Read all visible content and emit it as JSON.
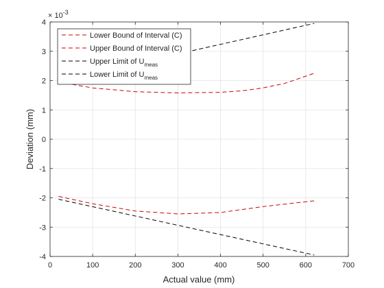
{
  "chart_data": {
    "type": "line",
    "xlabel": "Actual value (mm)",
    "ylabel": "Deviation (mm)",
    "xlim": [
      0,
      700
    ],
    "ylim": [
      -4,
      4
    ],
    "x_ticks": [
      0,
      100,
      200,
      300,
      400,
      500,
      600,
      700
    ],
    "y_ticks": [
      -4,
      -3,
      -2,
      -1,
      0,
      1,
      2,
      3,
      4
    ],
    "y_exponent_label": "× 10",
    "y_exponent_power": "-3",
    "y_display_scale": 0.001,
    "grid": true,
    "legend_position": "top-left",
    "series": [
      {
        "name": "Lower Bound of Interval (C)",
        "color": "#cc0000",
        "dash": "dashed",
        "x": [
          20,
          100,
          200,
          300,
          400,
          500,
          620
        ],
        "y": [
          -1.95,
          -2.2,
          -2.45,
          -2.55,
          -2.5,
          -2.3,
          -2.1
        ]
      },
      {
        "name": "Upper Bound of Interval (C)",
        "color": "#cc0000",
        "dash": "dashed",
        "x": [
          20,
          100,
          200,
          300,
          400,
          450,
          500,
          550,
          620
        ],
        "y": [
          1.95,
          1.75,
          1.62,
          1.58,
          1.6,
          1.65,
          1.75,
          1.9,
          2.25
        ]
      },
      {
        "name": "Upper Limit of U",
        "name_sub": "meas",
        "color": "#000000",
        "dash": "dashed",
        "x": [
          20,
          620
        ],
        "y": [
          2.0,
          3.95
        ]
      },
      {
        "name": "Lower Limit of U",
        "name_sub": "meas",
        "color": "#000000",
        "dash": "dashed",
        "x": [
          20,
          620
        ],
        "y": [
          -2.05,
          -3.95
        ]
      }
    ]
  }
}
